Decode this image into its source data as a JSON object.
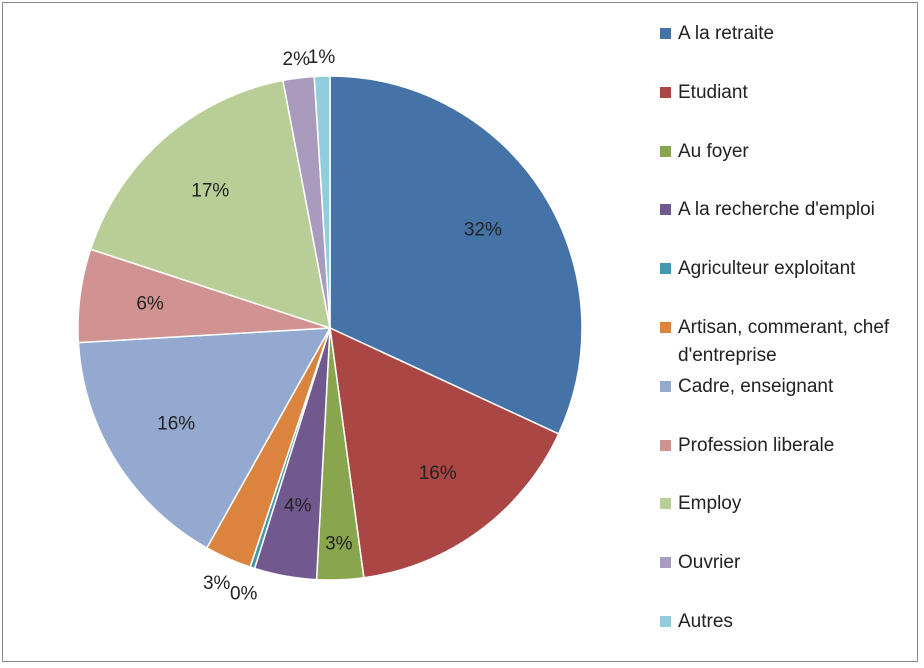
{
  "chart_data": {
    "type": "pie",
    "categories": [
      "A la retraite",
      "Etudiant",
      "Au foyer",
      "A la recherche d'emploi",
      "Agriculteur exploitant",
      "Artisan, commerant, chef d'entreprise",
      "Cadre, enseignant",
      "Profession liberale",
      "Employ",
      "Ouvrier",
      "Autres"
    ],
    "values": [
      32,
      16,
      3,
      4,
      0.3,
      3,
      16,
      6,
      17,
      2,
      1
    ],
    "value_labels": [
      "32%",
      "16%",
      "3%",
      "4%",
      "0%",
      "3%",
      "16%",
      "6%",
      "17%",
      "2%",
      "1%"
    ],
    "colors": [
      "#4572a7",
      "#aa4643",
      "#89a54e",
      "#71588f",
      "#4198af",
      "#db843d",
      "#93a9cf",
      "#d19392",
      "#b9cd96",
      "#a99bbd",
      "#92cddc"
    ],
    "legend": "right"
  }
}
